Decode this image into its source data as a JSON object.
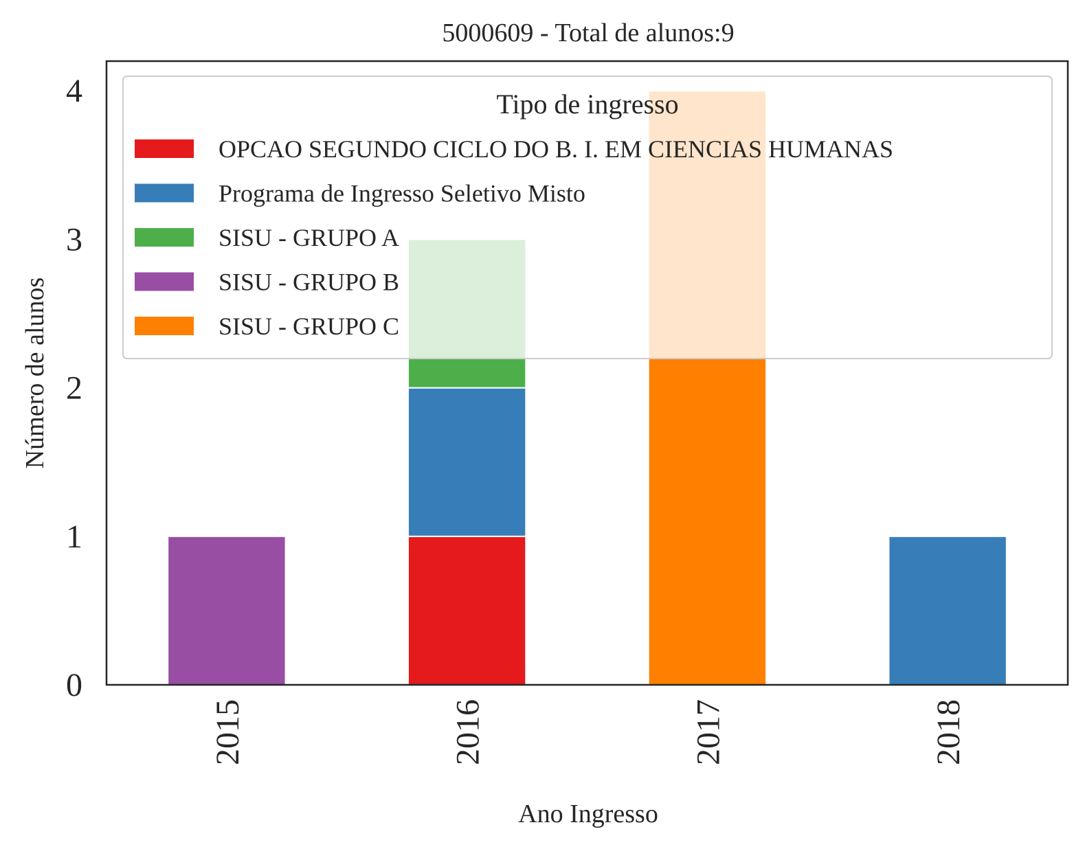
{
  "chart_data": {
    "type": "bar",
    "stacked": true,
    "title": "5000609 - Total de alunos:9",
    "xlabel": "Ano Ingresso",
    "ylabel": "Número de alunos",
    "categories": [
      "2015",
      "2016",
      "2017",
      "2018"
    ],
    "yticks": [
      "0",
      "1",
      "2",
      "3",
      "4"
    ],
    "ylim": [
      0,
      4.2
    ],
    "grid": false,
    "legend": {
      "title": "Tipo de ingresso",
      "placement": "top"
    },
    "series": [
      {
        "name": "OPCAO SEGUNDO CICLO DO B. I. EM CIENCIAS HUMANAS",
        "color": "#e41a1c",
        "values": [
          0,
          1,
          0,
          0
        ]
      },
      {
        "name": "Programa de Ingresso Seletivo Misto",
        "color": "#377eb8",
        "values": [
          0,
          1,
          0,
          1
        ]
      },
      {
        "name": "SISU - GRUPO A",
        "color": "#4daf4a",
        "values": [
          0,
          1,
          0,
          0
        ]
      },
      {
        "name": "SISU - GRUPO B",
        "color": "#984ea3",
        "values": [
          1,
          0,
          0,
          0
        ]
      },
      {
        "name": "SISU - GRUPO C",
        "color": "#ff7f00",
        "values": [
          0,
          0,
          4,
          0
        ]
      }
    ]
  }
}
